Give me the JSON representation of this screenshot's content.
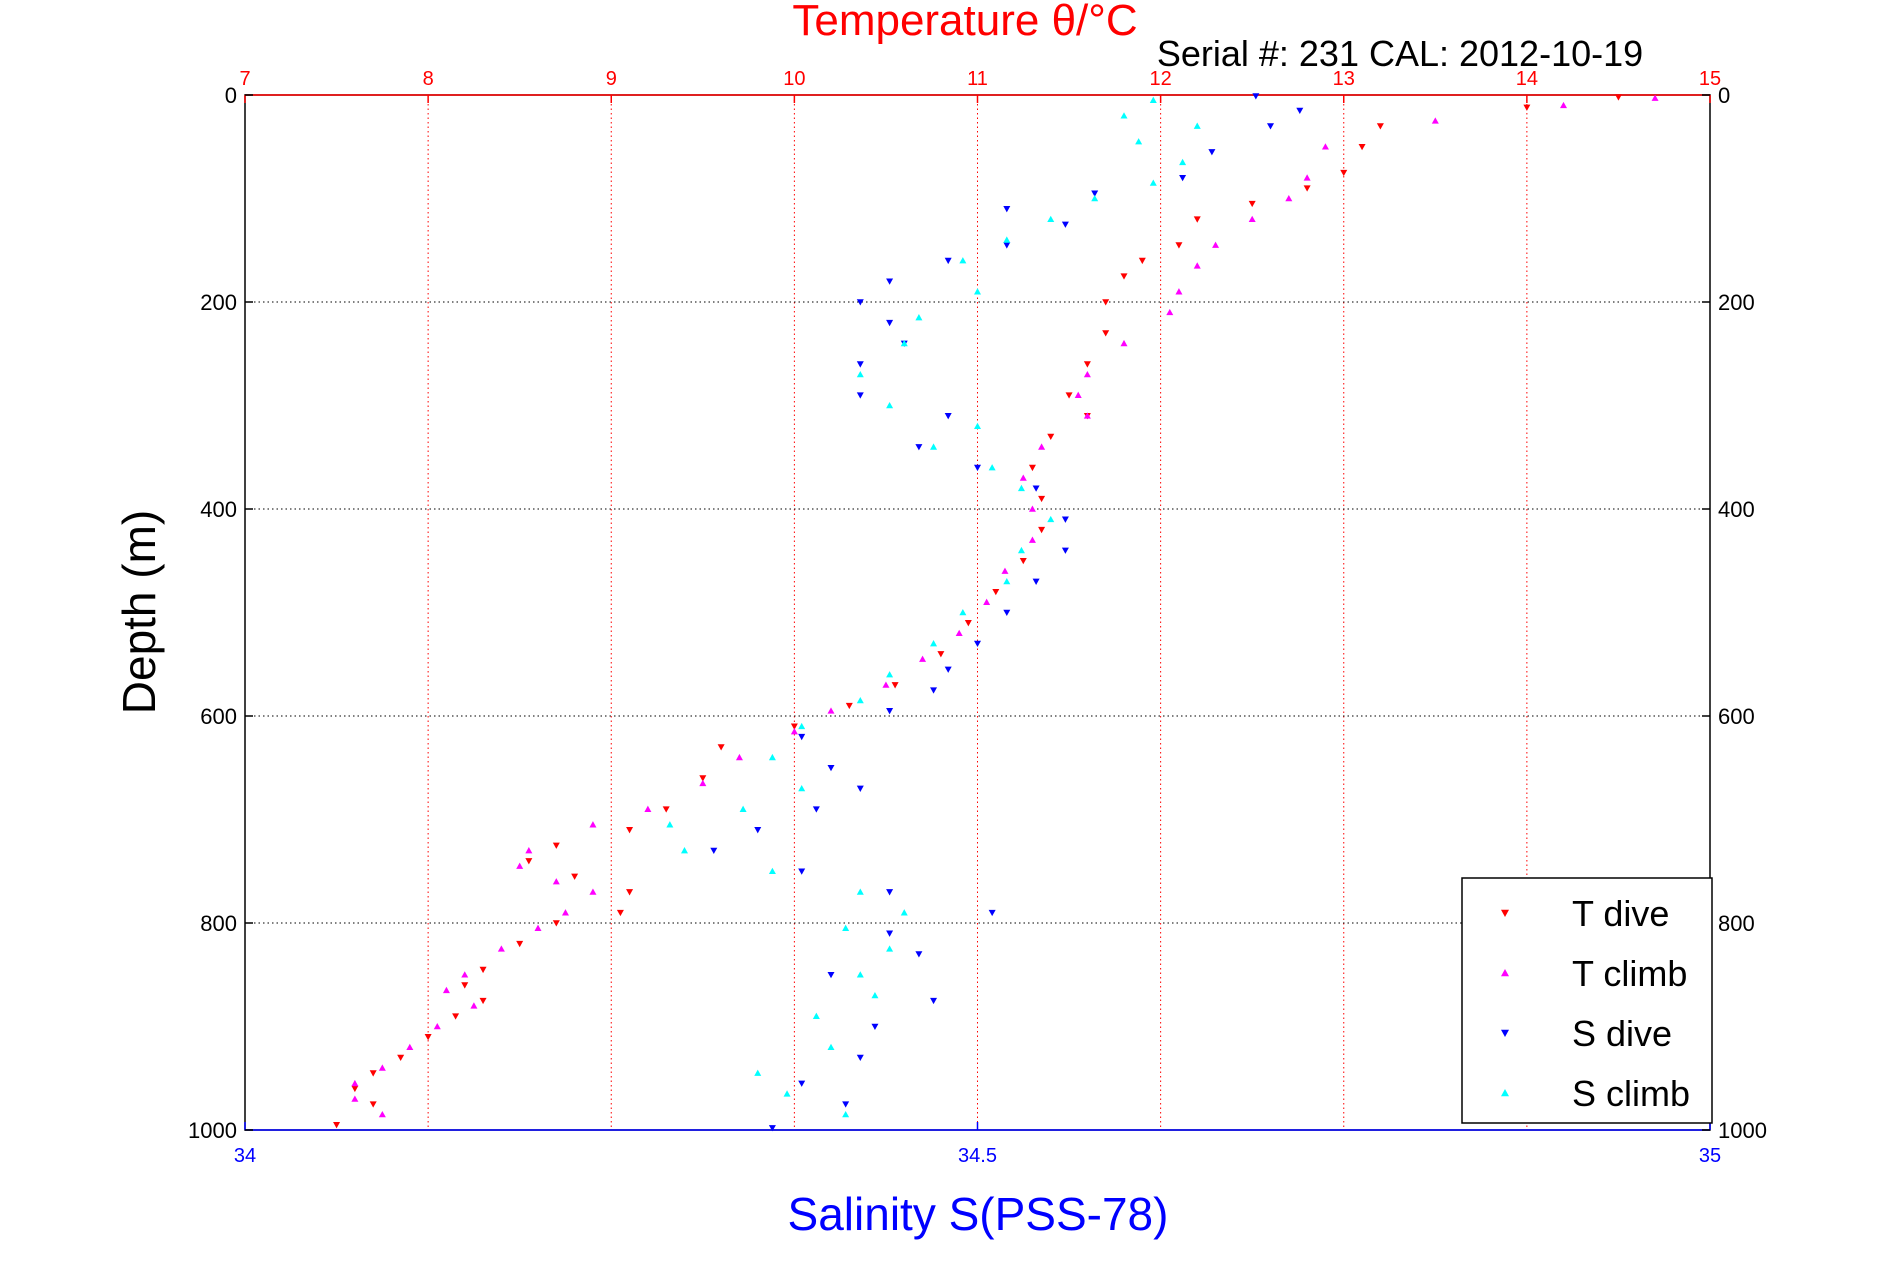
{
  "chart_data": {
    "type": "scatter",
    "title": "Temperature θ/°C",
    "subtitle": "Serial #: 231  CAL: 2012-10-19",
    "ylabel": "Depth (m)",
    "xlabel": "Salinity S(PSS-78)",
    "ylim": [
      0,
      1000
    ],
    "y_reversed": true,
    "temperature_axis": {
      "position": "top",
      "range": [
        7,
        15
      ],
      "ticks": [
        "7",
        "8",
        "9",
        "10",
        "11",
        "12",
        "13",
        "14",
        "15"
      ],
      "color": "#ff0000"
    },
    "salinity_axis": {
      "position": "bottom",
      "range": [
        34,
        35
      ],
      "ticks": [
        "34",
        "34.5",
        "35"
      ],
      "color": "#0000ff"
    },
    "depth_axis": {
      "ticks": [
        "0",
        "200",
        "400",
        "600",
        "800",
        "1000"
      ]
    },
    "grid": true,
    "legend": {
      "position": "bottom-right",
      "entries": [
        "T dive",
        "T climb",
        "S dive",
        "S climb"
      ]
    },
    "series": [
      {
        "name": "T dive",
        "axis": "temperature",
        "marker": "triangle-down",
        "color": "#ff0000",
        "points": [
          [
            14.5,
            2
          ],
          [
            14.0,
            12
          ],
          [
            13.2,
            30
          ],
          [
            13.1,
            50
          ],
          [
            13.0,
            75
          ],
          [
            12.8,
            90
          ],
          [
            12.5,
            105
          ],
          [
            12.2,
            120
          ],
          [
            12.1,
            145
          ],
          [
            11.9,
            160
          ],
          [
            11.8,
            175
          ],
          [
            11.7,
            200
          ],
          [
            11.7,
            230
          ],
          [
            11.6,
            260
          ],
          [
            11.5,
            290
          ],
          [
            11.6,
            310
          ],
          [
            11.4,
            330
          ],
          [
            11.3,
            360
          ],
          [
            11.35,
            390
          ],
          [
            11.35,
            420
          ],
          [
            11.25,
            450
          ],
          [
            11.1,
            480
          ],
          [
            10.95,
            510
          ],
          [
            10.8,
            540
          ],
          [
            10.55,
            570
          ],
          [
            10.3,
            590
          ],
          [
            10.0,
            610
          ],
          [
            9.6,
            630
          ],
          [
            9.5,
            660
          ],
          [
            9.3,
            690
          ],
          [
            9.1,
            710
          ],
          [
            8.7,
            725
          ],
          [
            8.55,
            740
          ],
          [
            8.8,
            755
          ],
          [
            9.1,
            770
          ],
          [
            9.05,
            790
          ],
          [
            8.7,
            800
          ],
          [
            8.5,
            820
          ],
          [
            8.3,
            845
          ],
          [
            8.2,
            860
          ],
          [
            8.3,
            875
          ],
          [
            8.15,
            890
          ],
          [
            8.0,
            910
          ],
          [
            7.85,
            930
          ],
          [
            7.7,
            945
          ],
          [
            7.6,
            960
          ],
          [
            7.7,
            975
          ],
          [
            7.5,
            995
          ]
        ]
      },
      {
        "name": "T climb",
        "axis": "temperature",
        "marker": "triangle-up",
        "color": "#ff00ff",
        "points": [
          [
            14.7,
            3
          ],
          [
            14.2,
            10
          ],
          [
            13.5,
            25
          ],
          [
            12.9,
            50
          ],
          [
            12.8,
            80
          ],
          [
            12.7,
            100
          ],
          [
            12.5,
            120
          ],
          [
            12.3,
            145
          ],
          [
            12.2,
            165
          ],
          [
            12.1,
            190
          ],
          [
            12.05,
            210
          ],
          [
            11.8,
            240
          ],
          [
            11.6,
            270
          ],
          [
            11.55,
            290
          ],
          [
            11.6,
            310
          ],
          [
            11.35,
            340
          ],
          [
            11.25,
            370
          ],
          [
            11.3,
            400
          ],
          [
            11.3,
            430
          ],
          [
            11.15,
            460
          ],
          [
            11.05,
            490
          ],
          [
            10.9,
            520
          ],
          [
            10.7,
            545
          ],
          [
            10.5,
            570
          ],
          [
            10.2,
            595
          ],
          [
            10.0,
            615
          ],
          [
            9.7,
            640
          ],
          [
            9.5,
            665
          ],
          [
            9.2,
            690
          ],
          [
            8.9,
            705
          ],
          [
            8.55,
            730
          ],
          [
            8.5,
            745
          ],
          [
            8.7,
            760
          ],
          [
            8.9,
            770
          ],
          [
            8.75,
            790
          ],
          [
            8.6,
            805
          ],
          [
            8.4,
            825
          ],
          [
            8.2,
            850
          ],
          [
            8.1,
            865
          ],
          [
            8.25,
            880
          ],
          [
            8.05,
            900
          ],
          [
            7.9,
            920
          ],
          [
            7.75,
            940
          ],
          [
            7.6,
            955
          ],
          [
            7.6,
            970
          ],
          [
            7.75,
            985
          ]
        ]
      },
      {
        "name": "S dive",
        "axis": "salinity",
        "marker": "triangle-down",
        "color": "#0000ff",
        "points": [
          [
            34.69,
            1
          ],
          [
            34.72,
            15
          ],
          [
            34.7,
            30
          ],
          [
            34.66,
            55
          ],
          [
            34.64,
            80
          ],
          [
            34.58,
            95
          ],
          [
            34.52,
            110
          ],
          [
            34.56,
            125
          ],
          [
            34.52,
            145
          ],
          [
            34.48,
            160
          ],
          [
            34.44,
            180
          ],
          [
            34.42,
            200
          ],
          [
            34.44,
            220
          ],
          [
            34.45,
            240
          ],
          [
            34.42,
            260
          ],
          [
            34.42,
            290
          ],
          [
            34.48,
            310
          ],
          [
            34.46,
            340
          ],
          [
            34.5,
            360
          ],
          [
            34.54,
            380
          ],
          [
            34.56,
            410
          ],
          [
            34.56,
            440
          ],
          [
            34.54,
            470
          ],
          [
            34.52,
            500
          ],
          [
            34.5,
            530
          ],
          [
            34.48,
            555
          ],
          [
            34.47,
            575
          ],
          [
            34.44,
            595
          ],
          [
            34.38,
            620
          ],
          [
            34.4,
            650
          ],
          [
            34.42,
            670
          ],
          [
            34.39,
            690
          ],
          [
            34.35,
            710
          ],
          [
            34.32,
            730
          ],
          [
            34.38,
            750
          ],
          [
            34.44,
            770
          ],
          [
            34.51,
            790
          ],
          [
            34.44,
            810
          ],
          [
            34.46,
            830
          ],
          [
            34.4,
            850
          ],
          [
            34.47,
            875
          ],
          [
            34.43,
            900
          ],
          [
            34.42,
            930
          ],
          [
            34.38,
            955
          ],
          [
            34.41,
            975
          ],
          [
            34.36,
            998
          ]
        ]
      },
      {
        "name": "S climb",
        "axis": "salinity",
        "marker": "triangle-up",
        "color": "#00ffff",
        "points": [
          [
            34.62,
            5
          ],
          [
            34.6,
            20
          ],
          [
            34.65,
            30
          ],
          [
            34.61,
            45
          ],
          [
            34.64,
            65
          ],
          [
            34.62,
            85
          ],
          [
            34.58,
            100
          ],
          [
            34.55,
            120
          ],
          [
            34.52,
            140
          ],
          [
            34.49,
            160
          ],
          [
            34.5,
            190
          ],
          [
            34.46,
            215
          ],
          [
            34.45,
            240
          ],
          [
            34.42,
            270
          ],
          [
            34.44,
            300
          ],
          [
            34.5,
            320
          ],
          [
            34.47,
            340
          ],
          [
            34.51,
            360
          ],
          [
            34.53,
            380
          ],
          [
            34.55,
            410
          ],
          [
            34.53,
            440
          ],
          [
            34.52,
            470
          ],
          [
            34.49,
            500
          ],
          [
            34.47,
            530
          ],
          [
            34.44,
            560
          ],
          [
            34.42,
            585
          ],
          [
            34.38,
            610
          ],
          [
            34.36,
            640
          ],
          [
            34.38,
            670
          ],
          [
            34.34,
            690
          ],
          [
            34.29,
            705
          ],
          [
            34.3,
            730
          ],
          [
            34.36,
            750
          ],
          [
            34.42,
            770
          ],
          [
            34.45,
            790
          ],
          [
            34.41,
            805
          ],
          [
            34.44,
            825
          ],
          [
            34.42,
            850
          ],
          [
            34.43,
            870
          ],
          [
            34.39,
            890
          ],
          [
            34.4,
            920
          ],
          [
            34.35,
            945
          ],
          [
            34.37,
            965
          ],
          [
            34.41,
            985
          ]
        ]
      }
    ]
  }
}
